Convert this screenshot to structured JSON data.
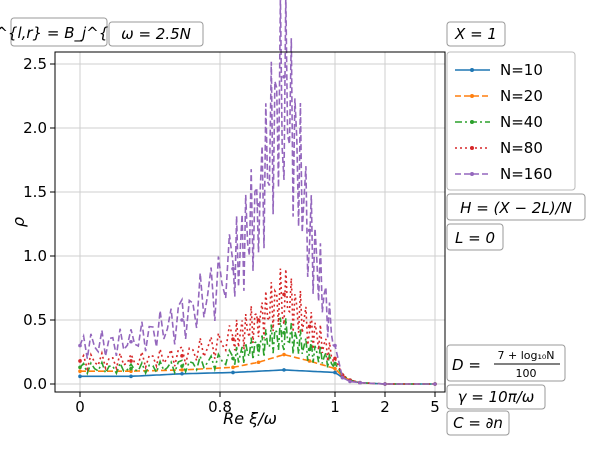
{
  "chart_data": {
    "type": "line",
    "title": "",
    "xlabel": "Re ξ/ω",
    "ylabel": "ρ",
    "ylim": [
      0,
      2.5
    ],
    "x_scale": "piecewise: linear 0–1 on first three panels, 1–5 on last",
    "x_tick_labels": [
      "0",
      "0.8",
      "1",
      "2",
      "5"
    ],
    "y_tick_labels": [
      "0.0",
      "0.5",
      "1.0",
      "1.5",
      "2.0",
      "2.5"
    ],
    "y_ticks": [
      0,
      0.5,
      1.0,
      1.5,
      2.0,
      2.5
    ],
    "grid": true,
    "legend_placement": "right",
    "series": [
      {
        "name": "N=10",
        "color": "#1f77b4",
        "style": "solid",
        "points": [
          [
            0,
            0.06
          ],
          [
            0.2,
            0.06
          ],
          [
            0.4,
            0.08
          ],
          [
            0.6,
            0.09
          ],
          [
            0.8,
            0.11
          ],
          [
            1.0,
            0.09
          ],
          [
            1.3,
            0.05
          ],
          [
            1.6,
            0.03
          ],
          [
            2,
            0.01
          ],
          [
            3,
            0.0
          ],
          [
            5,
            0.0
          ]
        ]
      },
      {
        "name": "N=20",
        "color": "#ff7f0e",
        "style": "dashed",
        "points": [
          [
            0,
            0.1
          ],
          [
            0.2,
            0.1
          ],
          [
            0.4,
            0.11
          ],
          [
            0.6,
            0.13
          ],
          [
            0.7,
            0.17
          ],
          [
            0.8,
            0.23
          ],
          [
            0.9,
            0.18
          ],
          [
            1.0,
            0.12
          ],
          [
            1.3,
            0.06
          ],
          [
            1.6,
            0.03
          ],
          [
            2,
            0.01
          ],
          [
            3,
            0.0
          ],
          [
            5,
            0.0
          ]
        ]
      },
      {
        "name": "N=40",
        "color": "#2ca02c",
        "style": "dashdot",
        "points": [
          [
            0,
            0.13
          ],
          [
            0.2,
            0.12
          ],
          [
            0.4,
            0.14
          ],
          [
            0.6,
            0.2
          ],
          [
            0.7,
            0.3
          ],
          [
            0.8,
            0.4
          ],
          [
            0.9,
            0.27
          ],
          [
            1.0,
            0.16
          ],
          [
            1.3,
            0.07
          ],
          [
            1.6,
            0.03
          ],
          [
            2,
            0.01
          ],
          [
            3,
            0.0
          ],
          [
            5,
            0.0
          ]
        ]
      },
      {
        "name": "N=80",
        "color": "#d62728",
        "style": "dotted",
        "points": [
          [
            0,
            0.18
          ],
          [
            0.2,
            0.18
          ],
          [
            0.4,
            0.22
          ],
          [
            0.6,
            0.35
          ],
          [
            0.7,
            0.5
          ],
          [
            0.8,
            0.7
          ],
          [
            0.9,
            0.45
          ],
          [
            1.0,
            0.2
          ],
          [
            1.3,
            0.07
          ],
          [
            1.6,
            0.03
          ],
          [
            2,
            0.01
          ],
          [
            3,
            0.0
          ],
          [
            5,
            0.0
          ]
        ]
      },
      {
        "name": "N=160",
        "color": "#9467bd",
        "style": "dashed",
        "points": [
          [
            0,
            0.3
          ],
          [
            0.2,
            0.33
          ],
          [
            0.4,
            0.5
          ],
          [
            0.6,
            0.9
          ],
          [
            0.7,
            1.4
          ],
          [
            0.8,
            2.4
          ],
          [
            0.9,
            1.2
          ],
          [
            1.0,
            0.3
          ],
          [
            1.3,
            0.05
          ],
          [
            1.6,
            0.02
          ],
          [
            2,
            0.01
          ],
          [
            3,
            0.0
          ],
          [
            5,
            0.0
          ]
        ]
      }
    ]
  },
  "annotations": {
    "top_left_1": "B^{l,r} = B_j^{l,r}",
    "top_left_2": "ω = 2.5N",
    "top_right": "X = 1",
    "right_1": "H = (X − 2L)/N",
    "right_2": "L = 0",
    "right_3_prefix": "D =",
    "right_3_num": "7 + log₁₀N",
    "right_3_den": "100",
    "right_4": "γ = 10π/ω",
    "right_5": "C = ∂n"
  }
}
